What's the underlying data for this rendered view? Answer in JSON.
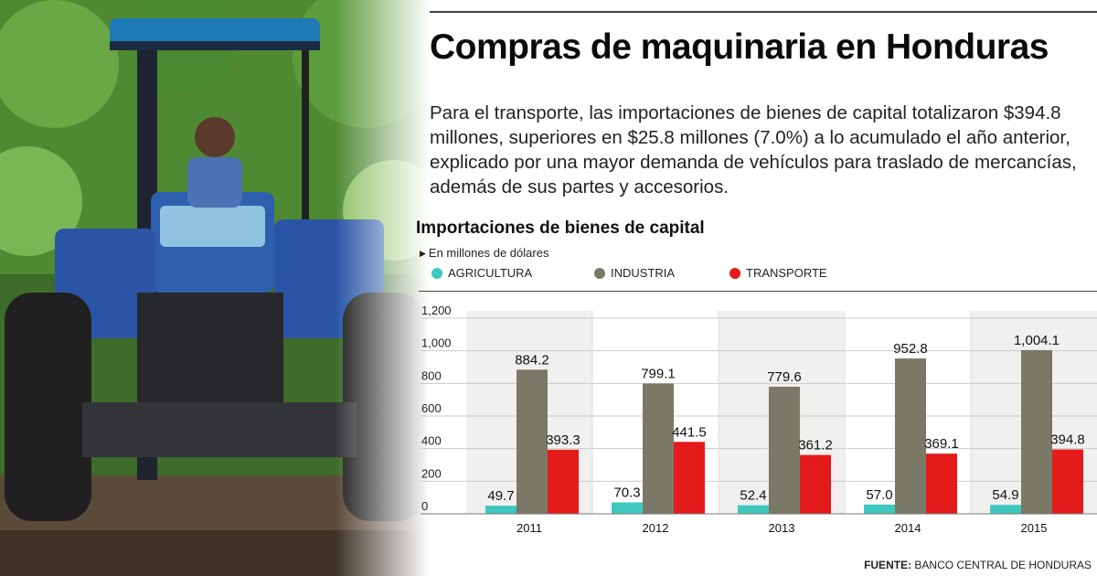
{
  "header": {
    "title": "Compras de maquinaria en Honduras",
    "lead": "Para el transporte, las importaciones de bienes de capital totalizaron $394.8 millones, superiores en $25.8 millones (7.0%) a lo acumulado el año anterior, explicado por una mayor demanda de vehículos para traslado de mercancías, además de sus partes y accesorios."
  },
  "source": {
    "label": "FUENTE:",
    "text": "BANCO CENTRAL DE HONDURAS"
  },
  "colors": {
    "agricultura": "#3ec8c0",
    "industria": "#7a7866",
    "transporte": "#e41b1b",
    "gridline": "#c9c9c9",
    "yearBand": "#f0f0ee"
  },
  "chart_data": {
    "type": "bar",
    "title": "Importaciones de bienes de capital",
    "subtitle": "En millones de dólares",
    "categories": [
      "2011",
      "2012",
      "2013",
      "2014",
      "2015"
    ],
    "series": [
      {
        "name": "AGRICULTURA",
        "values": [
          49.7,
          70.3,
          52.4,
          57.0,
          54.9
        ],
        "labels": [
          "49.7",
          "70.3",
          "52.4",
          "57.0",
          "54.9"
        ]
      },
      {
        "name": "INDUSTRIA",
        "values": [
          884.2,
          799.1,
          779.6,
          952.8,
          1004.1
        ],
        "labels": [
          "884.2",
          "799.1",
          "779.6",
          "952.8",
          "1,004.1"
        ]
      },
      {
        "name": "TRANSPORTE",
        "values": [
          393.3,
          441.5,
          361.2,
          369.1,
          394.8
        ],
        "labels": [
          "393.3",
          "441.5",
          "361.2",
          "369.1",
          "394.8"
        ]
      }
    ],
    "yticks": [
      "0",
      "200",
      "400",
      "600",
      "800",
      "1,000",
      "1,200"
    ],
    "ylim": [
      0,
      1200
    ],
    "legend_position": "top",
    "grid": true
  }
}
